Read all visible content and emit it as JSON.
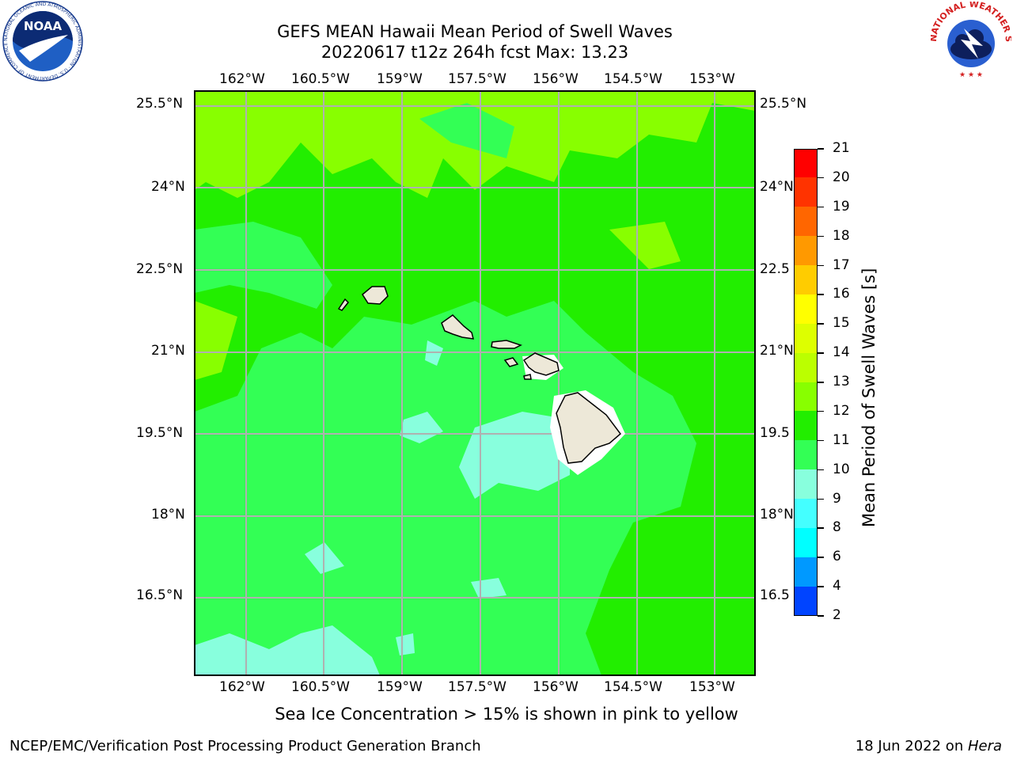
{
  "title": {
    "line1": "GEFS MEAN Hawaii Mean Period of Swell Waves",
    "line2": "20220617 t12z 264h fcst   Max: 13.23"
  },
  "map": {
    "lon_labels": [
      "162°W",
      "160.5°W",
      "159°W",
      "157.5°W",
      "156°W",
      "154.5°W",
      "153°W"
    ],
    "lat_labels_left": [
      "25.5°N",
      "24°N",
      "22.5°N",
      "21°N",
      "19.5°N",
      "18°N",
      "16.5°N"
    ],
    "lat_labels_right": [
      "25.5°N",
      "24°N",
      "22.5",
      "21°N",
      "19.5",
      "18°N",
      "16.5"
    ],
    "ocean_color": "#33ff44",
    "land_color": "#ede8d8",
    "grid_color": "#b0b0b0"
  },
  "colorbar": {
    "label": "Mean Period of Swell Waves [s]",
    "ticks": [
      "21",
      "20",
      "19",
      "18",
      "17",
      "16",
      "15",
      "14",
      "13",
      "12",
      "11",
      "10",
      "9",
      "8",
      "6",
      "4",
      "2"
    ],
    "colors": [
      "#ff0000",
      "#ff3300",
      "#ff6600",
      "#ff9900",
      "#ffcc00",
      "#ffff00",
      "#ddff00",
      "#bbff00",
      "#88ff00",
      "#22ee00",
      "#33ff55",
      "#88ffdd",
      "#44ffff",
      "#00ffff",
      "#0099ff",
      "#0044ff",
      "#0000ff"
    ]
  },
  "logos": {
    "noaa_text": "NOAA",
    "noaa_ring": "NATIONAL OCEANIC AND ATMOSPHERIC ADMINISTRATION · U.S. DEPARTMENT OF COMMERCE",
    "nws_ring": "NATIONAL WEATHER SERVICE"
  },
  "caption": "Sea Ice Concentration > 15% is shown in pink to yellow",
  "footer": {
    "left": "NCEP/EMC/Verification Post Processing Product Generation Branch",
    "right_date": "18 Jun 2022 on ",
    "right_host": "Hera"
  }
}
